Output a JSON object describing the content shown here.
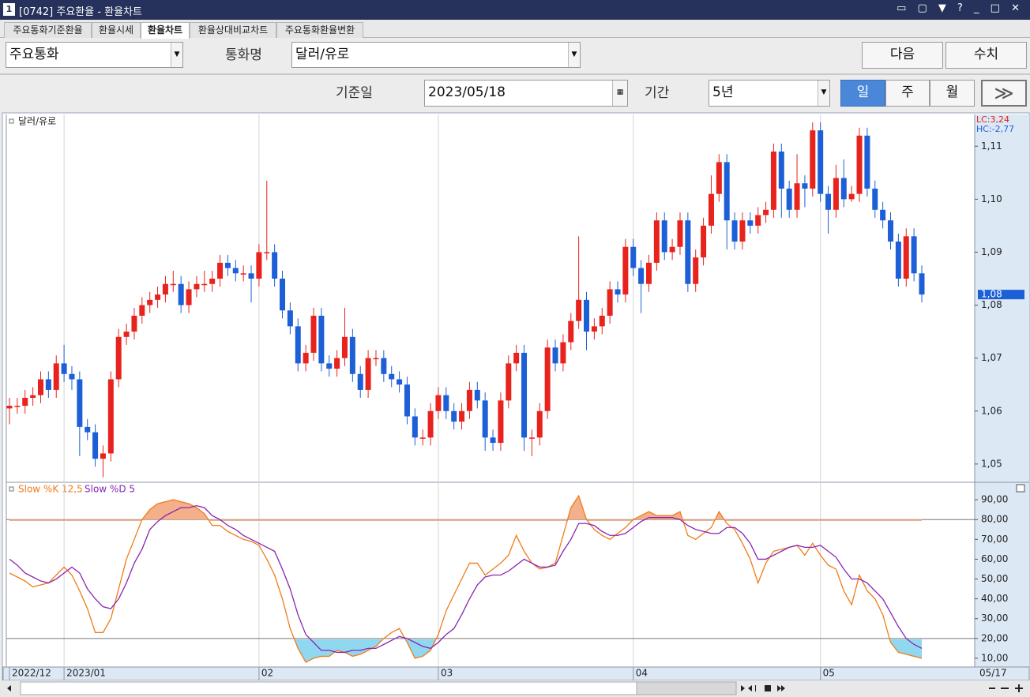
{
  "window": {
    "title": "[0742] 주요환율 - 환율차트",
    "badge": "1"
  },
  "tabs": [
    "주요통화기준환율",
    "환율시세",
    "환율차트",
    "환율상대비교차트",
    "주요통화환율변환"
  ],
  "toolbar": {
    "group": "주요통화",
    "currency_label": "통화명",
    "currency": "달러/유로",
    "next": "다음",
    "numbers": "수치",
    "date_label": "기준일",
    "date": "2023/05/18",
    "period_label": "기간",
    "period": "5년",
    "units": [
      "일",
      "주",
      "월"
    ],
    "go": "≫"
  },
  "chart_data": [
    {
      "type": "candlestick",
      "name": "달러/유로",
      "lc": "LC:3,24",
      "hc": "HC:-2,77",
      "up_color": "#e8231d",
      "down_color": "#1d5fd6",
      "categories": [
        "2022/12",
        null,
        null,
        null,
        null,
        null,
        null,
        "2023/01",
        null,
        null,
        null,
        null,
        null,
        null,
        null,
        null,
        null,
        null,
        null,
        null,
        null,
        null,
        null,
        null,
        null,
        null,
        null,
        null,
        null,
        null,
        null,
        null,
        "02",
        null,
        null,
        null,
        null,
        null,
        null,
        null,
        null,
        null,
        null,
        null,
        null,
        null,
        null,
        null,
        null,
        null,
        null,
        null,
        null,
        null,
        null,
        "03",
        null,
        null,
        null,
        null,
        null,
        null,
        null,
        null,
        null,
        null,
        null,
        null,
        null,
        null,
        null,
        null,
        null,
        null,
        null,
        null,
        null,
        null,
        null,
        null,
        "04",
        null,
        null,
        null,
        null,
        null,
        null,
        null,
        null,
        null,
        null,
        null,
        null,
        null,
        null,
        null,
        null,
        null,
        null,
        null,
        null,
        null,
        null,
        null,
        "05",
        null,
        null,
        null,
        null,
        null,
        null,
        null,
        null,
        null,
        null,
        null,
        null,
        "05/17"
      ],
      "open": [
        1.0605,
        1.061,
        1.061,
        1.0625,
        1.063,
        1.066,
        1.064,
        1.069,
        1.067,
        1.066,
        1.057,
        1.056,
        1.051,
        1.052,
        1.066,
        1.074,
        1.075,
        1.078,
        1.08,
        1.081,
        1.082,
        1.084,
        1.084,
        1.08,
        1.083,
        1.084,
        1.084,
        1.085,
        1.088,
        1.087,
        1.086,
        1.086,
        1.085,
        1.09,
        1.09,
        1.085,
        1.079,
        1.076,
        1.069,
        1.071,
        1.078,
        1.069,
        1.068,
        1.07,
        1.074,
        1.067,
        1.064,
        1.07,
        1.07,
        1.067,
        1.066,
        1.065,
        1.059,
        1.055,
        1.055,
        1.06,
        1.063,
        1.06,
        1.058,
        1.06,
        1.064,
        1.062,
        1.055,
        1.054,
        1.062,
        1.069,
        1.071,
        1.055,
        1.055,
        1.06,
        1.072,
        1.069,
        1.073,
        1.077,
        1.081,
        1.075,
        1.076,
        1.078,
        1.083,
        1.082,
        1.091,
        1.087,
        1.084,
        1.088,
        1.096,
        1.09,
        1.091,
        1.096,
        1.084,
        1.089,
        1.095,
        1.101,
        1.107,
        1.096,
        1.092,
        1.096,
        1.095,
        1.097,
        1.098,
        1.109,
        1.102,
        1.098,
        1.103,
        1.102,
        1.113,
        1.101,
        1.098,
        1.104,
        1.1,
        1.101,
        1.112,
        1.102,
        1.098,
        1.096,
        1.092,
        1.085,
        1.093,
        1.086
      ],
      "high": [
        1.0625,
        1.0625,
        1.064,
        1.0645,
        1.0675,
        1.0675,
        1.0705,
        1.0725,
        1.0685,
        1.0675,
        1.0585,
        1.0575,
        1.0535,
        1.0675,
        1.0755,
        1.0765,
        1.0795,
        1.0815,
        1.0825,
        1.0835,
        1.0855,
        1.0865,
        1.0855,
        1.0845,
        1.0855,
        1.0865,
        1.0865,
        1.0895,
        1.0895,
        1.0885,
        1.0875,
        1.0875,
        1.0915,
        1.1035,
        1.0915,
        1.0865,
        1.0805,
        1.0775,
        1.0725,
        1.0795,
        1.0795,
        1.0705,
        1.0715,
        1.0795,
        1.0755,
        1.0685,
        1.0715,
        1.0715,
        1.0715,
        1.0685,
        1.0675,
        1.0665,
        1.0605,
        1.0565,
        1.0615,
        1.0645,
        1.0645,
        1.0615,
        1.0615,
        1.0655,
        1.0655,
        1.0635,
        1.0565,
        1.0635,
        1.0705,
        1.0725,
        1.0725,
        1.0565,
        1.0615,
        1.0735,
        1.0735,
        1.0745,
        1.0785,
        1.093,
        1.0825,
        1.0775,
        1.0795,
        1.0845,
        1.0845,
        1.0925,
        1.0925,
        1.0885,
        1.0895,
        1.0975,
        1.0975,
        1.0925,
        1.0975,
        1.0975,
        1.0905,
        1.0965,
        1.1045,
        1.1085,
        1.1085,
        1.0975,
        1.0975,
        1.0975,
        1.0985,
        1.0995,
        1.1105,
        1.1105,
        1.1035,
        1.1085,
        1.1045,
        1.1145,
        1.1145,
        1.1025,
        1.1065,
        1.1075,
        1.1025,
        1.1135,
        1.1135,
        1.1035,
        1.0995,
        1.0975,
        1.0935,
        1.0945,
        1.0945,
        1.0875
      ],
      "low": [
        1.0575,
        1.0595,
        1.0595,
        1.061,
        1.0615,
        1.0625,
        1.0625,
        1.0655,
        1.064,
        1.0515,
        1.0545,
        1.0495,
        1.0475,
        1.0505,
        1.0645,
        1.0725,
        1.0735,
        1.0765,
        1.0785,
        1.0795,
        1.0805,
        1.0825,
        1.0785,
        1.0785,
        1.0815,
        1.0825,
        1.0825,
        1.0835,
        1.0855,
        1.0845,
        1.0845,
        1.0805,
        1.0835,
        1.0885,
        1.0835,
        1.0775,
        1.0745,
        1.0675,
        1.0675,
        1.0695,
        1.0675,
        1.0665,
        1.0665,
        1.0685,
        1.0655,
        1.0625,
        1.0625,
        1.0685,
        1.0655,
        1.0645,
        1.0635,
        1.0575,
        1.0535,
        1.0535,
        1.0535,
        1.0585,
        1.0585,
        1.0565,
        1.0565,
        1.0585,
        1.0605,
        1.0525,
        1.0525,
        1.0525,
        1.0605,
        1.0675,
        1.0525,
        1.0515,
        1.0535,
        1.0585,
        1.0675,
        1.0675,
        1.0715,
        1.0755,
        1.0715,
        1.0735,
        1.0745,
        1.0765,
        1.0805,
        1.0805,
        1.0855,
        1.0785,
        1.0825,
        1.0865,
        1.0885,
        1.0885,
        1.0895,
        1.0825,
        1.0825,
        1.0875,
        1.0935,
        1.0995,
        1.0905,
        1.0905,
        1.0905,
        1.0935,
        1.0935,
        1.0955,
        1.0965,
        1.0965,
        1.0965,
        1.0965,
        1.0985,
        1.1005,
        1.0995,
        1.0935,
        1.0965,
        1.0985,
        1.0995,
        1.0995,
        1.1005,
        1.0965,
        1.0945,
        1.0905,
        1.0835,
        1.0835,
        1.0845,
        1.0805
      ],
      "close": [
        1.061,
        1.061,
        1.0625,
        1.063,
        1.066,
        1.064,
        1.069,
        1.067,
        1.066,
        1.057,
        1.056,
        1.051,
        1.052,
        1.066,
        1.074,
        1.075,
        1.078,
        1.08,
        1.081,
        1.082,
        1.084,
        1.084,
        1.08,
        1.083,
        1.084,
        1.084,
        1.085,
        1.088,
        1.087,
        1.086,
        1.086,
        1.085,
        1.09,
        1.09,
        1.085,
        1.079,
        1.076,
        1.069,
        1.071,
        1.078,
        1.069,
        1.068,
        1.07,
        1.074,
        1.067,
        1.064,
        1.07,
        1.07,
        1.067,
        1.066,
        1.065,
        1.059,
        1.055,
        1.055,
        1.06,
        1.063,
        1.06,
        1.058,
        1.06,
        1.064,
        1.062,
        1.055,
        1.054,
        1.062,
        1.069,
        1.071,
        1.055,
        1.055,
        1.06,
        1.072,
        1.069,
        1.073,
        1.077,
        1.081,
        1.075,
        1.076,
        1.078,
        1.083,
        1.082,
        1.091,
        1.087,
        1.084,
        1.088,
        1.096,
        1.09,
        1.091,
        1.096,
        1.084,
        1.089,
        1.095,
        1.101,
        1.107,
        1.096,
        1.092,
        1.096,
        1.095,
        1.097,
        1.098,
        1.109,
        1.102,
        1.098,
        1.103,
        1.102,
        1.113,
        1.101,
        1.098,
        1.104,
        1.1,
        1.101,
        1.112,
        1.102,
        1.098,
        1.096,
        1.092,
        1.085,
        1.093,
        1.086,
        1.082
      ],
      "current_price": {
        "value": 1.082,
        "label": "1,08"
      },
      "ylim": [
        1.0467,
        1.116
      ],
      "yticks": [
        {
          "value": 1.11,
          "label": "1,11"
        },
        {
          "value": 1.1,
          "label": "1,10"
        },
        {
          "value": 1.09,
          "label": "1,09"
        },
        {
          "value": 1.08,
          "label": "1,08"
        },
        {
          "value": 1.07,
          "label": "1,07"
        },
        {
          "value": 1.06,
          "label": "1,06"
        },
        {
          "value": 1.05,
          "label": "1,05"
        }
      ]
    },
    {
      "type": "line",
      "series": [
        {
          "name": "Slow %K 12,5",
          "color": "#f07c18",
          "values": [
            53,
            51,
            49,
            46,
            47,
            48,
            52,
            56,
            52,
            44,
            35,
            23,
            23,
            30,
            45,
            60,
            70,
            80,
            85,
            88,
            89,
            90,
            89,
            88,
            86,
            83,
            77,
            77,
            74,
            72,
            70,
            69,
            67,
            60,
            52,
            40,
            25,
            15,
            8,
            10,
            11,
            11,
            14,
            13,
            11,
            12,
            14,
            16,
            20,
            23,
            25,
            18,
            10,
            11,
            14,
            22,
            34,
            42,
            50,
            58,
            58,
            52,
            55,
            58,
            62,
            72,
            64,
            58,
            55,
            56,
            58,
            72,
            86,
            92,
            80,
            75,
            72,
            70,
            73,
            76,
            80,
            82,
            84,
            82,
            82,
            82,
            84,
            72,
            70,
            73,
            76,
            84,
            78,
            75,
            68,
            60,
            48,
            58,
            64,
            65,
            66,
            67,
            62,
            68,
            62,
            57,
            55,
            44,
            37,
            52,
            44,
            40,
            32,
            18,
            13,
            12,
            11,
            10
          ]
        },
        {
          "name": "Slow %D 5",
          "color": "#8a24b2",
          "values": [
            60,
            57,
            53,
            51,
            49,
            48,
            50,
            53,
            56,
            53,
            45,
            40,
            36,
            35,
            40,
            48,
            58,
            65,
            75,
            79,
            82,
            84,
            86,
            86,
            87,
            86,
            82,
            80,
            77,
            75,
            72,
            70,
            68,
            66,
            64,
            55,
            45,
            32,
            22,
            18,
            14,
            14,
            13,
            13,
            14,
            14,
            15,
            15,
            17,
            19,
            21,
            20,
            18,
            16,
            15,
            18,
            22,
            25,
            32,
            40,
            47,
            51,
            52,
            52,
            54,
            57,
            60,
            58,
            56,
            56,
            57,
            64,
            70,
            78,
            78,
            77,
            74,
            72,
            72,
            73,
            76,
            79,
            81,
            81,
            81,
            81,
            80,
            77,
            75,
            74,
            73,
            73,
            76,
            76,
            73,
            68,
            60,
            60,
            62,
            64,
            66,
            67,
            66,
            66,
            67,
            64,
            61,
            55,
            50,
            50,
            48,
            44,
            40,
            33,
            26,
            20,
            17,
            15
          ]
        }
      ],
      "ref_lines": [
        80,
        20
      ],
      "ylim": [
        5.6,
        98.4
      ],
      "yticks": [
        {
          "value": 90,
          "label": "90,00"
        },
        {
          "value": 80,
          "label": "80,00"
        },
        {
          "value": 70,
          "label": "70,00"
        },
        {
          "value": 60,
          "label": "60,00"
        },
        {
          "value": 50,
          "label": "50,00"
        },
        {
          "value": 40,
          "label": "40,00"
        },
        {
          "value": 30,
          "label": "30,00"
        },
        {
          "value": 20,
          "label": "20,00"
        },
        {
          "value": 10,
          "label": "10,00"
        }
      ]
    }
  ]
}
